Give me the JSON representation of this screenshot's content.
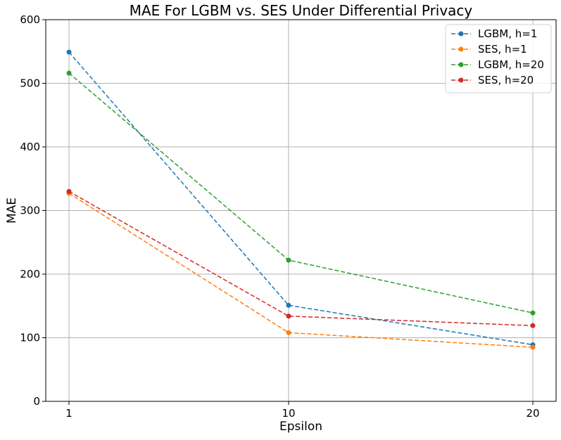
{
  "chart_data": {
    "type": "line",
    "title": "MAE For LGBM vs. SES Under Differential Privacy",
    "xlabel": "Epsilon",
    "ylabel": "MAE",
    "x": [
      1,
      10,
      20
    ],
    "xticks": [
      "1",
      "10",
      "20"
    ],
    "ylim": [
      0,
      600
    ],
    "yticks": [
      "0",
      "100",
      "200",
      "300",
      "400",
      "500",
      "600"
    ],
    "grid": true,
    "legend_position": "top-right",
    "series": [
      {
        "name": "LGBM, h=1",
        "color": "#1f77b4",
        "values": [
          549,
          151,
          89
        ]
      },
      {
        "name": "SES, h=1",
        "color": "#ff7f0e",
        "values": [
          327,
          108,
          85
        ]
      },
      {
        "name": "LGBM, h=20",
        "color": "#2ca02c",
        "values": [
          516,
          222,
          139
        ]
      },
      {
        "name": "SES, h=20",
        "color": "#d62728",
        "values": [
          330,
          134,
          119
        ]
      }
    ]
  }
}
